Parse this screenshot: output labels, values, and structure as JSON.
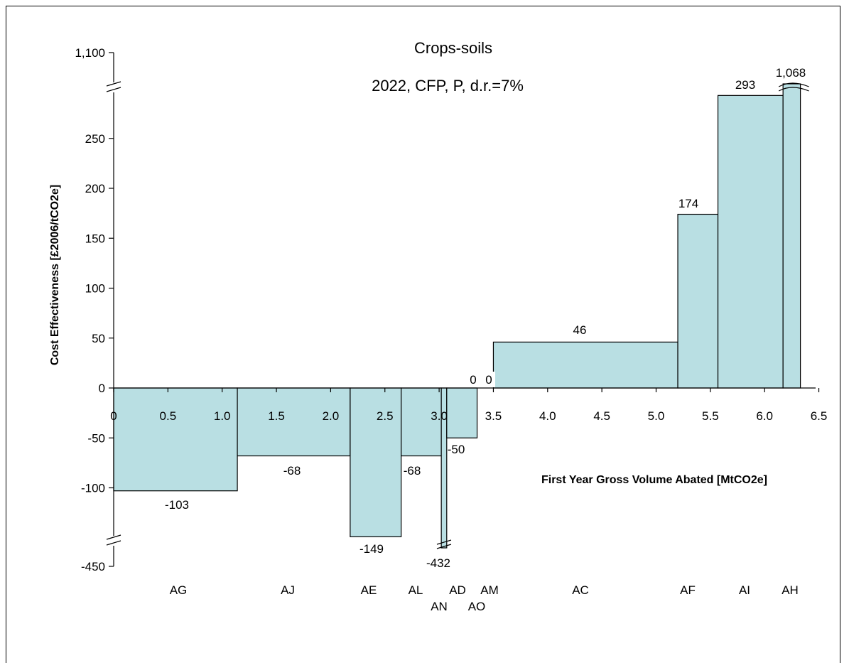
{
  "chart_data": {
    "type": "bar",
    "title": "Crops-soils",
    "subtitle": "2022, CFP, P, d.r.=7%",
    "xlabel": "First Year Gross Volume Abated [MtCO2e]",
    "ylabel": "Cost Effectiveness [£2006/tCO2e]",
    "xlim": [
      0,
      6.5
    ],
    "x_ticks": [
      "0",
      "0.5",
      "1.0",
      "1.5",
      "2.0",
      "2.5",
      "3.0",
      "3.5",
      "4.0",
      "4.5",
      "5.0",
      "5.5",
      "6.0",
      "6.5"
    ],
    "y_ticks": [
      "-450",
      "-100",
      "-50",
      "0",
      "50",
      "100",
      "150",
      "200",
      "250",
      "1,100"
    ],
    "axis_breaks": "broken y-axis between 293 and 1,100 and between -149 and -450",
    "grid": false,
    "bars": [
      {
        "code": "AG",
        "x0": 0.0,
        "x1": 1.14,
        "value": -103,
        "label": "-103"
      },
      {
        "code": "AJ",
        "x0": 1.14,
        "x1": 2.18,
        "value": -68,
        "label": "-68"
      },
      {
        "code": "AE",
        "x0": 2.18,
        "x1": 2.65,
        "value": -149,
        "label": "-149"
      },
      {
        "code": "AL",
        "x0": 2.65,
        "x1": 3.02,
        "value": -68,
        "label": "-68"
      },
      {
        "code": "AN",
        "x0": 3.02,
        "x1": 3.07,
        "value": -432,
        "label": "-432"
      },
      {
        "code": "AD",
        "x0": 3.07,
        "x1": 3.35,
        "value": -50,
        "label": "-50"
      },
      {
        "code": "AM",
        "x0": 3.35,
        "x1": 3.45,
        "value": 0,
        "label": "0"
      },
      {
        "code": "AO",
        "x0": 3.45,
        "x1": 3.5,
        "value": 0,
        "label": "0"
      },
      {
        "code": "AC",
        "x0": 3.5,
        "x1": 5.2,
        "value": 46,
        "label": "46"
      },
      {
        "code": "AF",
        "x0": 5.2,
        "x1": 5.57,
        "value": 174,
        "label": "174"
      },
      {
        "code": "AI",
        "x0": 5.57,
        "x1": 6.17,
        "value": 293,
        "label": "293"
      },
      {
        "code": "AH",
        "x0": 6.17,
        "x1": 6.33,
        "value": 1068,
        "label": "1,068"
      }
    ]
  }
}
